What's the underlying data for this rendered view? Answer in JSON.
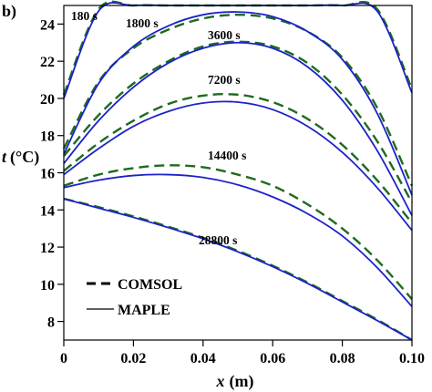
{
  "panel_label": "b)",
  "chart_data": {
    "type": "line",
    "xlabel_var": "x",
    "xlabel_unit": "(m)",
    "ylabel_var": "t",
    "ylabel_unit": "(°C)",
    "xlim": [
      0,
      0.1
    ],
    "ylim": [
      7,
      25
    ],
    "xticks": [
      0,
      0.02,
      0.04,
      0.06,
      0.08,
      0.1
    ],
    "xtick_labels": [
      "0",
      "0.02",
      "0.04",
      "0.06",
      "0.08",
      "0.10"
    ],
    "yticks": [
      8,
      10,
      12,
      14,
      16,
      18,
      20,
      22,
      24
    ],
    "ytick_labels": [
      "8",
      "10",
      "12",
      "14",
      "16",
      "18",
      "20",
      "22",
      "24"
    ],
    "grid": false,
    "legend": {
      "position": "bottom-left",
      "entries": [
        {
          "label": "COMSOL",
          "style": "dashed"
        },
        {
          "label": "MAPLE",
          "style": "solid"
        }
      ]
    },
    "colors": {
      "comsol": "#1e6b1e",
      "maple": "#1c22c8"
    },
    "x": [
      0,
      0.01,
      0.02,
      0.03,
      0.04,
      0.05,
      0.06,
      0.07,
      0.08,
      0.09,
      0.1
    ],
    "series": [
      {
        "time": "180 s",
        "source": "COMSOL",
        "values": [
          20.2,
          24.8,
          25.0,
          25.0,
          25.0,
          25.0,
          25.0,
          25.0,
          25.0,
          24.8,
          20.5
        ]
      },
      {
        "time": "180 s",
        "source": "MAPLE",
        "values": [
          20.0,
          24.7,
          25.0,
          25.0,
          25.0,
          25.0,
          25.0,
          25.0,
          25.0,
          24.7,
          20.3
        ]
      },
      {
        "time": "1800 s",
        "source": "COMSOL",
        "values": [
          17.3,
          20.9,
          22.7,
          23.7,
          24.3,
          24.5,
          24.3,
          23.6,
          22.2,
          19.5,
          15.3
        ]
      },
      {
        "time": "1800 s",
        "source": "MAPLE",
        "values": [
          17.0,
          20.8,
          22.8,
          23.9,
          24.5,
          24.65,
          24.4,
          23.6,
          22.1,
          19.2,
          14.8
        ]
      },
      {
        "time": "3600 s",
        "source": "COMSOL",
        "values": [
          16.9,
          19.1,
          20.8,
          22.0,
          22.8,
          23.05,
          22.8,
          21.9,
          20.2,
          17.7,
          14.4
        ]
      },
      {
        "time": "3600 s",
        "source": "MAPLE",
        "values": [
          16.5,
          18.8,
          20.6,
          21.9,
          22.7,
          23.0,
          22.7,
          21.7,
          19.9,
          17.2,
          13.7
        ]
      },
      {
        "time": "7200 s",
        "source": "COMSOL",
        "values": [
          16.1,
          17.6,
          18.8,
          19.7,
          20.15,
          20.2,
          19.8,
          18.9,
          17.5,
          15.6,
          13.3
        ]
      },
      {
        "time": "7200 s",
        "source": "MAPLE",
        "values": [
          15.9,
          17.3,
          18.5,
          19.3,
          19.75,
          19.8,
          19.4,
          18.5,
          17.1,
          15.2,
          12.9
        ]
      },
      {
        "time": "14400 s",
        "source": "COMSOL",
        "values": [
          15.3,
          15.9,
          16.25,
          16.4,
          16.3,
          15.9,
          15.3,
          14.3,
          13.0,
          11.3,
          9.2
        ]
      },
      {
        "time": "14400 s",
        "source": "MAPLE",
        "values": [
          15.2,
          15.6,
          15.85,
          15.9,
          15.75,
          15.35,
          14.7,
          13.8,
          12.6,
          10.9,
          8.8
        ]
      },
      {
        "time": "28800 s",
        "source": "COMSOL",
        "values": [
          14.6,
          14.15,
          13.65,
          13.1,
          12.5,
          11.8,
          11.0,
          10.1,
          9.1,
          8.1,
          7.0
        ]
      },
      {
        "time": "28800 s",
        "source": "MAPLE",
        "values": [
          14.6,
          14.1,
          13.6,
          13.05,
          12.45,
          11.75,
          10.95,
          10.05,
          9.05,
          8.05,
          7.0
        ]
      }
    ],
    "annotations": [
      "180 s",
      "1800 s",
      "3600 s",
      "7200 s",
      "14400 s",
      "28800 s"
    ]
  }
}
